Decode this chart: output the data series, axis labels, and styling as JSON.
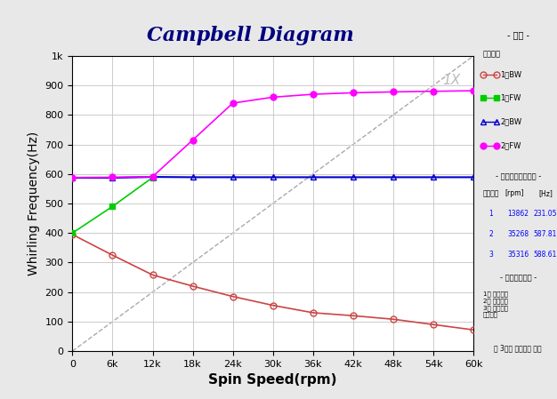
{
  "title": "Campbell Diagram",
  "xlabel": "Spin Speed(rpm)",
  "ylabel": "Whirling Frequency(Hz)",
  "xlim": [
    0,
    60000
  ],
  "ylim": [
    0,
    1000
  ],
  "xticks": [
    0,
    6000,
    12000,
    18000,
    24000,
    30000,
    36000,
    42000,
    48000,
    54000,
    60000
  ],
  "xticklabels": [
    "0",
    "6k",
    "12k",
    "18k",
    "24k",
    "30k",
    "36k",
    "42k",
    "48k",
    "54k",
    "60k"
  ],
  "yticks": [
    0,
    100,
    200,
    300,
    400,
    500,
    600,
    700,
    800,
    900,
    "1k"
  ],
  "ytick_values": [
    0,
    100,
    200,
    300,
    400,
    500,
    600,
    700,
    800,
    900,
    1000
  ],
  "ytick_labels": [
    "0",
    "100",
    "200",
    "300",
    "400",
    "500",
    "600",
    "700",
    "800",
    "900",
    "1k"
  ],
  "bg_color": "#e8e8e8",
  "plot_bg_color": "#ffffff",
  "grid_color": "#cccccc",
  "title_bg_color": "#00cccc",
  "title_color": "#000080",
  "xlabel_fontsize": 11,
  "ylabel_fontsize": 10,
  "title_fontsize": 16,
  "bw1_rpm": [
    0,
    6000,
    12000,
    18000,
    24000,
    30000,
    36000,
    42000,
    48000,
    54000,
    60000
  ],
  "bw1_hz": [
    395,
    325,
    258,
    220,
    185,
    155,
    130,
    120,
    108,
    90,
    72
  ],
  "fw1_rpm": [
    0,
    6000,
    12000
  ],
  "fw1_hz": [
    400,
    490,
    588
  ],
  "bw2_rpm": [
    0,
    6000,
    12000,
    18000,
    24000,
    30000,
    36000,
    42000,
    48000,
    54000,
    60000
  ],
  "bw2_hz": [
    587,
    587,
    590,
    589,
    589,
    589,
    589,
    589,
    589,
    589,
    589
  ],
  "fw2_rpm": [
    0,
    6000,
    12000,
    18000,
    24000,
    30000,
    36000,
    42000,
    48000,
    54000,
    60000
  ],
  "fw2_hz": [
    588,
    589,
    591,
    715,
    840,
    860,
    870,
    875,
    878,
    880,
    882
  ],
  "nx_line_rpm": [
    0,
    60000
  ],
  "nx_line_hz_1x": [
    0,
    1000
  ],
  "bw1_color": "#cc4444",
  "fw1_color": "#00cc00",
  "bw2_color": "#0000cc",
  "fw2_color": "#ff00ff",
  "nx_color": "#aaaaaa",
  "critical_speeds": [
    {
      "rpm": 13862,
      "hz": 231.05
    },
    {
      "rpm": 35268,
      "hz": 587.81
    },
    {
      "rpm": 35316,
      "hz": 588.61
    }
  ],
  "legend_entries": [
    "1차BW",
    "1차FW",
    "2차BW",
    "2차FW"
  ],
  "annotation_1x": "1X",
  "figsize": [
    6.26,
    4.49
  ],
  "dpi": 100
}
